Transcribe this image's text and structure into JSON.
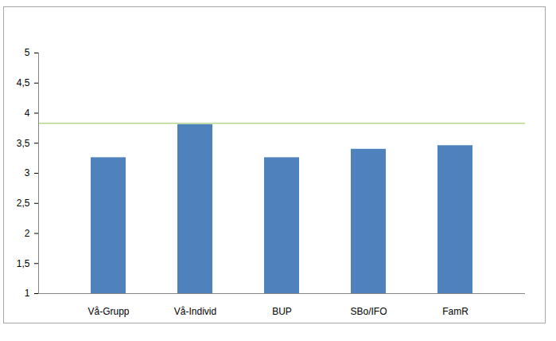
{
  "chart_data": {
    "type": "bar",
    "categories": [
      "Vå-Grupp",
      "Vå-Individ",
      "BUP",
      "SBo/IFO",
      "FamR"
    ],
    "values": [
      3.26,
      3.81,
      3.26,
      3.4,
      3.46
    ],
    "color": "#4f81bd",
    "reference_line": 3.83,
    "ylim": [
      1,
      5
    ],
    "yticks": [
      1,
      {
        "value": 1.5,
        "label": "1,5"
      },
      2,
      {
        "value": 2.5,
        "label": "2,5"
      },
      3,
      {
        "value": 3.5,
        "label": "3,5"
      },
      4,
      {
        "value": 4.5,
        "label": "4,5"
      },
      5
    ],
    "grid": false
  }
}
